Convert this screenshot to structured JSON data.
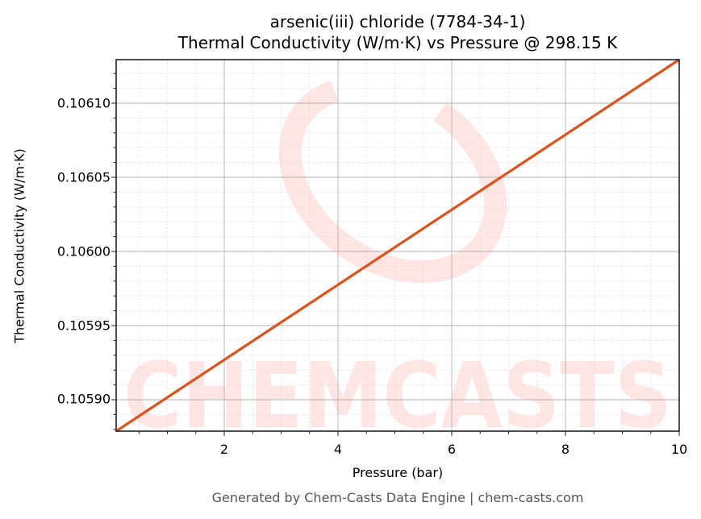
{
  "chart": {
    "title_line1": "arsenic(iii) chloride (7784-34-1)",
    "title_line2": "Thermal Conductivity (W/m·K) vs Pressure @ 298.15 K",
    "xlabel": "Pressure (bar)",
    "ylabel": "Thermal Conductivity (W/m·K)",
    "footer": "Generated by Chem-Casts Data Engine | chem-casts.com",
    "watermark": "CHEMCASTS",
    "line_color": "#d9541e",
    "xticks": [
      "2",
      "4",
      "6",
      "8",
      "10"
    ],
    "yticks": [
      "0.10610",
      "0.10605",
      "0.10600",
      "0.10595",
      "0.10590"
    ]
  },
  "chart_data": {
    "type": "line",
    "title": "arsenic(iii) chloride (7784-34-1)\nThermal Conductivity (W/m·K) vs Pressure @ 298.15 K",
    "xlabel": "Pressure (bar)",
    "ylabel": "Thermal Conductivity (W/m·K)",
    "xlim": [
      0.1,
      10
    ],
    "ylim": [
      0.105878,
      0.106129
    ],
    "x_ticks": [
      2,
      4,
      6,
      8,
      10
    ],
    "y_ticks": [
      0.1059,
      0.10595,
      0.106,
      0.10605,
      0.1061
    ],
    "grid": true,
    "legend": "none",
    "series": [
      {
        "name": "Thermal Conductivity",
        "color": "#d9541e",
        "x": [
          0.1,
          1,
          2,
          3,
          4,
          5,
          6,
          7,
          8,
          9,
          10
        ],
        "y": [
          0.105878,
          0.105901,
          0.105926,
          0.105952,
          0.105977,
          0.106002,
          0.106028,
          0.106053,
          0.106078,
          0.106104,
          0.106129
        ]
      }
    ]
  }
}
